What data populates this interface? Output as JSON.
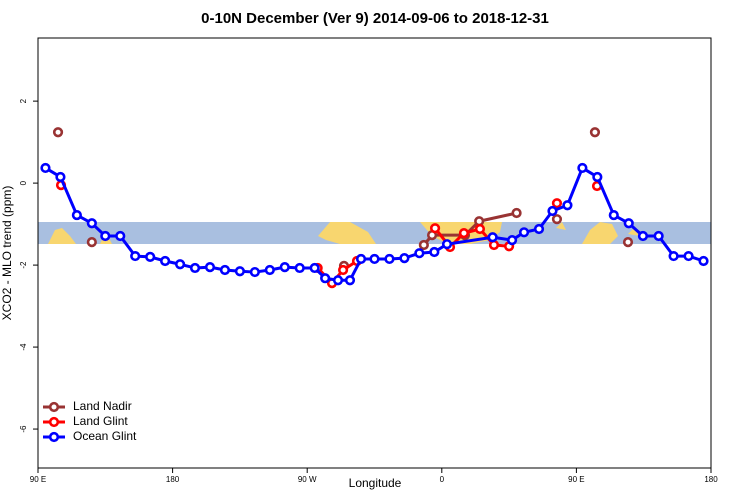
{
  "chart_data": {
    "type": "line",
    "title": "0-10N December (Ver 9)   2014-09-06 to 2018-12-31",
    "x_label": "Longitude",
    "y_label": "XCO2 - MLO trend (ppm)",
    "xlim": [
      90,
      540
    ],
    "ylim": [
      -6.95,
      3.54
    ],
    "xticks": [
      {
        "value": 90,
        "label": "90 E"
      },
      180,
      {
        "value": 270,
        "label": "90 W"
      },
      {
        "value": 360,
        "label": "0"
      },
      {
        "value": 450,
        "label": "90 E"
      },
      {
        "value": 540,
        "label": "180"
      }
    ],
    "yticks": [
      2,
      0,
      -2,
      -4,
      -6
    ],
    "legend": "bottom-left",
    "series": [
      {
        "name": "Land Nadir",
        "color": "#993333",
        "x": [
          103.4,
          null,
          126,
          null,
          294.6,
          null,
          348,
          353.5,
          375.5,
          385,
          410,
          null,
          437,
          null,
          462.4,
          null,
          484.5
        ],
        "values": [
          1.24,
          null,
          -1.44,
          null,
          -2.02,
          null,
          -1.51,
          -1.27,
          -1.27,
          -0.93,
          -0.73,
          null,
          -0.88,
          null,
          1.24,
          null,
          -1.44
        ]
      },
      {
        "name": "Land Glint",
        "color": "#ff0000",
        "x": [
          105.4,
          null,
          277,
          286.6,
          294,
          303.3,
          null,
          355.5,
          365.5,
          374.8,
          385.5,
          394.9,
          405,
          null,
          437,
          null,
          463.8
        ],
        "values": [
          -0.05,
          null,
          -2.07,
          -2.44,
          -2.12,
          -1.9,
          null,
          -1.1,
          -1.56,
          -1.22,
          -1.12,
          -1.51,
          -1.54,
          null,
          -0.49,
          null,
          -0.07
        ]
      },
      {
        "name": "Ocean Glint",
        "color": "#0000ff",
        "x": [
          95,
          105,
          116,
          126,
          135,
          145,
          155,
          165,
          175,
          185,
          195,
          205,
          215,
          225,
          235,
          245,
          255,
          265,
          275,
          282,
          290.6,
          298.6,
          306,
          315,
          325,
          335,
          345,
          355,
          363.5,
          394,
          407,
          415,
          425,
          434,
          444,
          454,
          464,
          475,
          485,
          494.5,
          505,
          515,
          525,
          535
        ],
        "values": [
          0.37,
          0.15,
          -0.78,
          -0.98,
          -1.29,
          -1.29,
          -1.78,
          -1.8,
          -1.9,
          -1.98,
          -2.07,
          -2.05,
          -2.12,
          -2.15,
          -2.17,
          -2.12,
          -2.05,
          -2.07,
          -2.07,
          -2.32,
          -2.37,
          -2.37,
          -1.85,
          -1.85,
          -1.85,
          -1.83,
          -1.71,
          -1.68,
          -1.49,
          -1.32,
          -1.39,
          -1.2,
          -1.12,
          -0.68,
          -0.54,
          0.37,
          0.15,
          -0.78,
          -0.98,
          -1.29,
          -1.29,
          -1.78,
          -1.78,
          -1.9
        ]
      }
    ]
  }
}
